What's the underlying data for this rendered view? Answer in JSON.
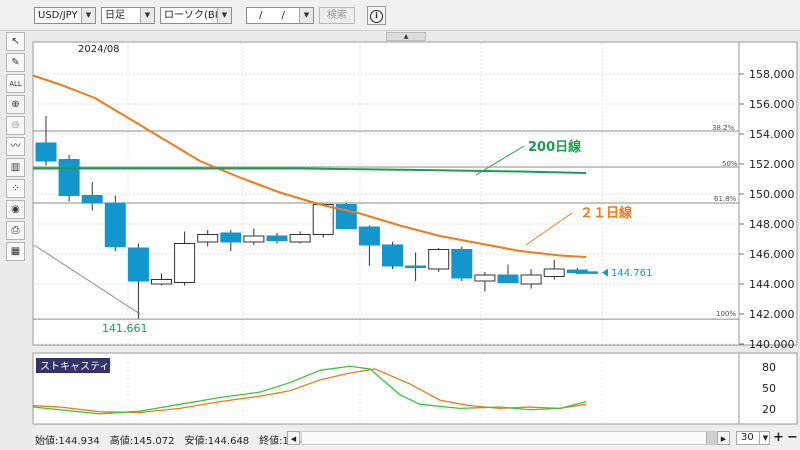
{
  "toolbar": {
    "symbol": "USD/JPY",
    "timeframe": "日足",
    "chart_style": "ローソク(BID)",
    "date_input": "/ /",
    "search_label": "検索"
  },
  "chart": {
    "month_label": "2024/08",
    "price_axis": [
      "158.000",
      "156.000",
      "154.000",
      "152.000",
      "150.000",
      "148.000",
      "146.000",
      "144.000",
      "142.000",
      "140.000"
    ],
    "fib_levels": {
      "l382": "38.2%",
      "l50": "50%",
      "l618": "61.8%",
      "l100": "100%"
    },
    "low_label": "141.661",
    "last_price": "144.761",
    "ma200_label": "200日線",
    "ma21_label": "２１日線",
    "colors": {
      "bull": "#ffffff",
      "bear": "#1296cc",
      "ma21": "#f07a1e",
      "ma200": "#1f9a52"
    },
    "candles": [
      {
        "o": 153.4,
        "h": 155.2,
        "l": 151.9,
        "c": 152.2
      },
      {
        "o": 152.3,
        "h": 152.6,
        "l": 149.5,
        "c": 149.9
      },
      {
        "o": 149.9,
        "h": 150.8,
        "l": 148.9,
        "c": 149.4
      },
      {
        "o": 149.4,
        "h": 149.9,
        "l": 146.2,
        "c": 146.5
      },
      {
        "o": 146.4,
        "h": 146.7,
        "l": 141.7,
        "c": 144.2
      },
      {
        "o": 144.0,
        "h": 144.7,
        "l": 143.9,
        "c": 144.3
      },
      {
        "o": 144.1,
        "h": 147.5,
        "l": 143.9,
        "c": 146.7
      },
      {
        "o": 146.8,
        "h": 147.6,
        "l": 146.5,
        "c": 147.3
      },
      {
        "o": 147.4,
        "h": 147.6,
        "l": 146.2,
        "c": 146.8
      },
      {
        "o": 146.8,
        "h": 147.7,
        "l": 146.6,
        "c": 147.2
      },
      {
        "o": 147.2,
        "h": 147.4,
        "l": 146.7,
        "c": 146.9
      },
      {
        "o": 146.8,
        "h": 147.5,
        "l": 146.7,
        "c": 147.3
      },
      {
        "o": 147.3,
        "h": 149.4,
        "l": 147.1,
        "c": 149.3
      },
      {
        "o": 149.3,
        "h": 149.4,
        "l": 147.7,
        "c": 147.7
      },
      {
        "o": 147.8,
        "h": 147.9,
        "l": 145.2,
        "c": 146.6
      },
      {
        "o": 146.6,
        "h": 146.8,
        "l": 145.0,
        "c": 145.2
      },
      {
        "o": 145.2,
        "h": 146.1,
        "l": 144.2,
        "c": 145.1
      },
      {
        "o": 145.0,
        "h": 146.4,
        "l": 144.8,
        "c": 146.3
      },
      {
        "o": 146.3,
        "h": 146.5,
        "l": 144.2,
        "c": 144.4
      },
      {
        "o": 144.2,
        "h": 144.8,
        "l": 143.5,
        "c": 144.6
      },
      {
        "o": 144.6,
        "h": 145.3,
        "l": 144.1,
        "c": 144.1
      },
      {
        "o": 144.0,
        "h": 145.0,
        "l": 143.7,
        "c": 144.6
      },
      {
        "o": 144.5,
        "h": 145.6,
        "l": 144.3,
        "c": 145.0
      },
      {
        "o": 144.93,
        "h": 145.07,
        "l": 144.65,
        "c": 144.76
      }
    ]
  },
  "stochastics": {
    "title": "ストキャスティクス",
    "levels": [
      "80",
      "50",
      "20"
    ]
  },
  "status": {
    "text": "始値:144.934　高値:145.072　安値:144.648　終値:144.761",
    "bars_count": "30"
  },
  "chart_data": {
    "type": "candlestick",
    "ylim": [
      140,
      159
    ],
    "series": [
      {
        "name": "200日線"
      },
      {
        "name": "２１日線"
      }
    ]
  }
}
